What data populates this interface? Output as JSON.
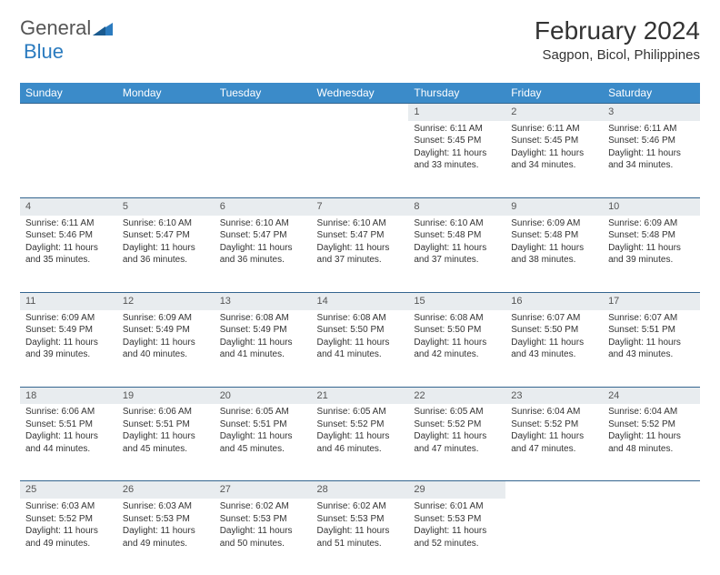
{
  "logo": {
    "text1": "General",
    "text2": "Blue"
  },
  "title": "February 2024",
  "location": "Sagpon, Bicol, Philippines",
  "colors": {
    "header_bg": "#3b8bc9",
    "header_text": "#ffffff",
    "daynum_bg": "#e8ecef",
    "border": "#34658f",
    "logo_blue": "#2b7bbf",
    "logo_gray": "#555555"
  },
  "weekdays": [
    "Sunday",
    "Monday",
    "Tuesday",
    "Wednesday",
    "Thursday",
    "Friday",
    "Saturday"
  ],
  "weeks": [
    [
      null,
      null,
      null,
      null,
      {
        "d": "1",
        "sr": "6:11 AM",
        "ss": "5:45 PM",
        "dh": "11",
        "dm": "33"
      },
      {
        "d": "2",
        "sr": "6:11 AM",
        "ss": "5:45 PM",
        "dh": "11",
        "dm": "34"
      },
      {
        "d": "3",
        "sr": "6:11 AM",
        "ss": "5:46 PM",
        "dh": "11",
        "dm": "34"
      }
    ],
    [
      {
        "d": "4",
        "sr": "6:11 AM",
        "ss": "5:46 PM",
        "dh": "11",
        "dm": "35"
      },
      {
        "d": "5",
        "sr": "6:10 AM",
        "ss": "5:47 PM",
        "dh": "11",
        "dm": "36"
      },
      {
        "d": "6",
        "sr": "6:10 AM",
        "ss": "5:47 PM",
        "dh": "11",
        "dm": "36"
      },
      {
        "d": "7",
        "sr": "6:10 AM",
        "ss": "5:47 PM",
        "dh": "11",
        "dm": "37"
      },
      {
        "d": "8",
        "sr": "6:10 AM",
        "ss": "5:48 PM",
        "dh": "11",
        "dm": "37"
      },
      {
        "d": "9",
        "sr": "6:09 AM",
        "ss": "5:48 PM",
        "dh": "11",
        "dm": "38"
      },
      {
        "d": "10",
        "sr": "6:09 AM",
        "ss": "5:48 PM",
        "dh": "11",
        "dm": "39"
      }
    ],
    [
      {
        "d": "11",
        "sr": "6:09 AM",
        "ss": "5:49 PM",
        "dh": "11",
        "dm": "39"
      },
      {
        "d": "12",
        "sr": "6:09 AM",
        "ss": "5:49 PM",
        "dh": "11",
        "dm": "40"
      },
      {
        "d": "13",
        "sr": "6:08 AM",
        "ss": "5:49 PM",
        "dh": "11",
        "dm": "41"
      },
      {
        "d": "14",
        "sr": "6:08 AM",
        "ss": "5:50 PM",
        "dh": "11",
        "dm": "41"
      },
      {
        "d": "15",
        "sr": "6:08 AM",
        "ss": "5:50 PM",
        "dh": "11",
        "dm": "42"
      },
      {
        "d": "16",
        "sr": "6:07 AM",
        "ss": "5:50 PM",
        "dh": "11",
        "dm": "43"
      },
      {
        "d": "17",
        "sr": "6:07 AM",
        "ss": "5:51 PM",
        "dh": "11",
        "dm": "43"
      }
    ],
    [
      {
        "d": "18",
        "sr": "6:06 AM",
        "ss": "5:51 PM",
        "dh": "11",
        "dm": "44"
      },
      {
        "d": "19",
        "sr": "6:06 AM",
        "ss": "5:51 PM",
        "dh": "11",
        "dm": "45"
      },
      {
        "d": "20",
        "sr": "6:05 AM",
        "ss": "5:51 PM",
        "dh": "11",
        "dm": "45"
      },
      {
        "d": "21",
        "sr": "6:05 AM",
        "ss": "5:52 PM",
        "dh": "11",
        "dm": "46"
      },
      {
        "d": "22",
        "sr": "6:05 AM",
        "ss": "5:52 PM",
        "dh": "11",
        "dm": "47"
      },
      {
        "d": "23",
        "sr": "6:04 AM",
        "ss": "5:52 PM",
        "dh": "11",
        "dm": "47"
      },
      {
        "d": "24",
        "sr": "6:04 AM",
        "ss": "5:52 PM",
        "dh": "11",
        "dm": "48"
      }
    ],
    [
      {
        "d": "25",
        "sr": "6:03 AM",
        "ss": "5:52 PM",
        "dh": "11",
        "dm": "49"
      },
      {
        "d": "26",
        "sr": "6:03 AM",
        "ss": "5:53 PM",
        "dh": "11",
        "dm": "49"
      },
      {
        "d": "27",
        "sr": "6:02 AM",
        "ss": "5:53 PM",
        "dh": "11",
        "dm": "50"
      },
      {
        "d": "28",
        "sr": "6:02 AM",
        "ss": "5:53 PM",
        "dh": "11",
        "dm": "51"
      },
      {
        "d": "29",
        "sr": "6:01 AM",
        "ss": "5:53 PM",
        "dh": "11",
        "dm": "52"
      },
      null,
      null
    ]
  ],
  "labels": {
    "sunrise": "Sunrise:",
    "sunset": "Sunset:",
    "daylight": "Daylight:",
    "hours": "hours",
    "and": "and",
    "minutes": "minutes."
  }
}
